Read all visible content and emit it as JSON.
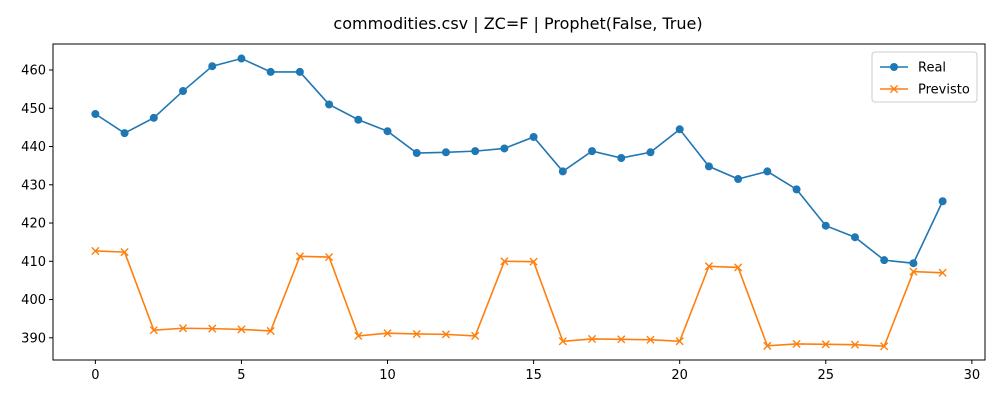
{
  "chart_data": {
    "type": "line",
    "title": "commodities.csv | ZC=F | Prophet(False, True)",
    "xlabel": "",
    "ylabel": "",
    "xlim": [
      -1.45,
      30.45
    ],
    "ylim": [
      384.2,
      466.8
    ],
    "xticks": [
      0,
      5,
      10,
      15,
      20,
      25,
      30
    ],
    "yticks": [
      390,
      400,
      410,
      420,
      430,
      440,
      450,
      460
    ],
    "grid": false,
    "legend_position": "top-right",
    "x": [
      0,
      1,
      2,
      3,
      4,
      5,
      6,
      7,
      8,
      9,
      10,
      11,
      12,
      13,
      14,
      15,
      16,
      17,
      18,
      19,
      20,
      21,
      22,
      23,
      24,
      25,
      26,
      27,
      28,
      29
    ],
    "series": [
      {
        "name": "Real",
        "color": "#1f77b4",
        "marker": "circle",
        "values": [
          448.5,
          443.5,
          447.5,
          454.5,
          461.0,
          463.0,
          459.5,
          459.5,
          451.0,
          447.0,
          444.0,
          438.3,
          438.5,
          438.8,
          439.5,
          442.5,
          433.5,
          438.8,
          437.0,
          438.5,
          444.5,
          434.8,
          431.5,
          433.5,
          428.8,
          419.3,
          416.3,
          410.3,
          409.5,
          425.7
        ]
      },
      {
        "name": "Previsto",
        "color": "#ff7f0e",
        "marker": "x",
        "values": [
          412.7,
          412.4,
          392.0,
          392.5,
          392.4,
          392.2,
          391.8,
          411.3,
          411.1,
          390.5,
          391.2,
          391.0,
          390.9,
          390.5,
          410.0,
          409.9,
          389.1,
          389.7,
          389.6,
          389.5,
          389.1,
          408.7,
          408.4,
          387.9,
          388.4,
          388.3,
          388.2,
          387.8,
          407.3,
          407.0
        ]
      }
    ]
  }
}
